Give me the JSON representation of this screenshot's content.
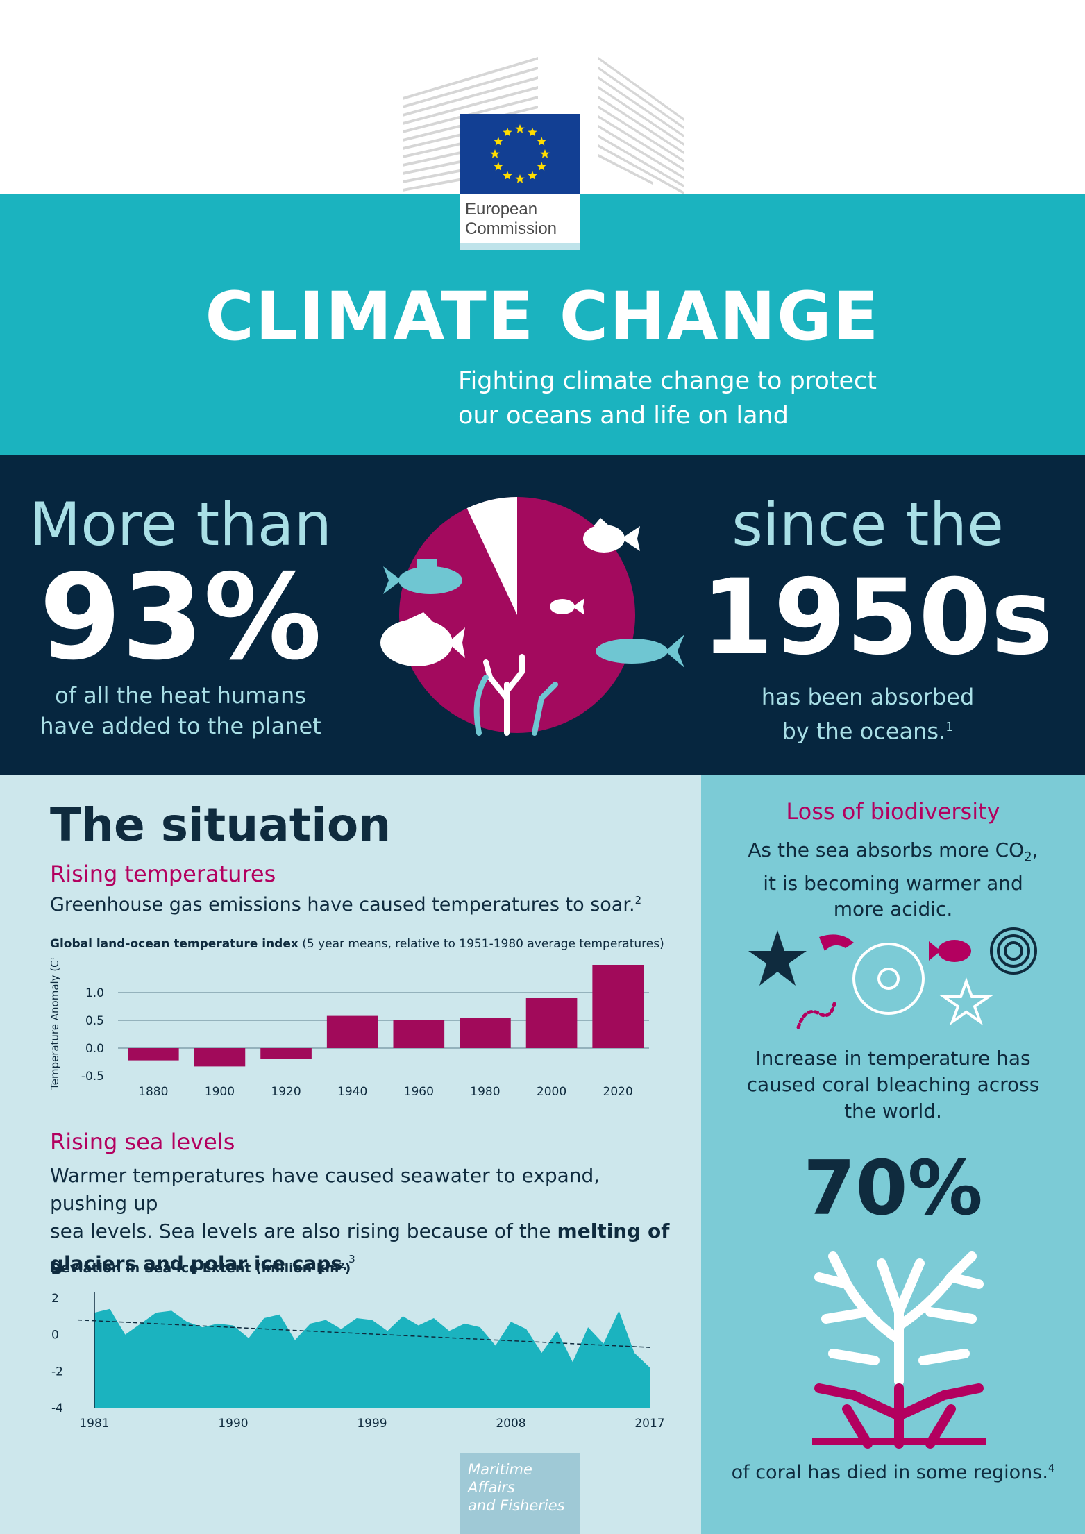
{
  "logo": {
    "line1": "European",
    "line2": "Commission"
  },
  "header": {
    "title": "CLIMATE CHANGE",
    "subtitle_line1": "Fighting climate change to protect",
    "subtitle_line2": "our oceans and life on land"
  },
  "heat": {
    "lead": "More than",
    "percent": "93%",
    "desc_line1": "of all the heat humans",
    "desc_line2": "have added to the planet",
    "since": "since the",
    "decade": "1950s",
    "absorbed_line1": "has been absorbed",
    "absorbed_line2": "by the oceans.",
    "absorbed_note": "1",
    "pie_share": 0.93
  },
  "situation": {
    "heading": "The situation",
    "temp_heading": "Rising temperatures",
    "temp_text": "Greenhouse gas emissions have caused temperatures to soar.",
    "temp_note": "2",
    "sea_heading": "Rising sea levels",
    "sea_text_1": "Warmer temperatures have caused seawater to expand, pushing up",
    "sea_text_2": "sea levels. Sea levels are also rising because of the ",
    "sea_text_bold_1": "melting of",
    "sea_text_bold_2": "glaciers and polar ice caps",
    "sea_text_end": ".",
    "sea_note": "3"
  },
  "chart_data": [
    {
      "type": "bar",
      "title": "Global land-ocean temperature index",
      "subtitle": "(5 year means, relative to 1951-1980 average temperatures)",
      "ylabel": "Temperature Anomaly (C°)",
      "xlabel": "",
      "categories": [
        "1880",
        "1900",
        "1920",
        "1940",
        "1960",
        "1980",
        "2000",
        "2020"
      ],
      "values": [
        -0.22,
        -0.33,
        -0.2,
        0.58,
        0.5,
        0.55,
        0.9,
        1.5
      ],
      "yticks": [
        "1.0",
        "0.5",
        "0.0",
        "-0.5"
      ],
      "ylim": [
        -0.5,
        1.5
      ],
      "grid": true,
      "color": "#a10a5a"
    },
    {
      "type": "area",
      "title": "Deviation in Sea Ice Extent (million km²)",
      "xlabel": "",
      "ylabel": "",
      "xticks": [
        "1981",
        "1990",
        "1999",
        "2008",
        "2017"
      ],
      "yticks": [
        "2",
        "0",
        "-2",
        "-4"
      ],
      "ylim": [
        -4,
        2
      ],
      "xlim": [
        1981,
        2017
      ],
      "x": [
        1981,
        1982,
        1983,
        1984,
        1985,
        1986,
        1987,
        1988,
        1989,
        1990,
        1991,
        1992,
        1993,
        1994,
        1995,
        1996,
        1997,
        1998,
        1999,
        2000,
        2001,
        2002,
        2003,
        2004,
        2005,
        2006,
        2007,
        2008,
        2009,
        2010,
        2011,
        2012,
        2013,
        2014,
        2015,
        2016,
        2017
      ],
      "values": [
        1.2,
        1.4,
        0.0,
        0.6,
        1.2,
        1.3,
        0.7,
        0.4,
        0.6,
        0.5,
        -0.2,
        0.9,
        1.1,
        -0.3,
        0.6,
        0.8,
        0.3,
        0.9,
        0.8,
        0.2,
        1.0,
        0.5,
        0.9,
        0.2,
        0.6,
        0.4,
        -0.6,
        0.7,
        0.3,
        -1.0,
        0.2,
        -1.5,
        0.4,
        -0.5,
        1.3,
        -1.0,
        -1.8
      ],
      "trend": [
        0.8,
        -0.7
      ],
      "color": "#1bb3bf"
    }
  ],
  "biodiversity": {
    "heading": "Loss of biodiversity",
    "text_line1_a": "As the sea absorbs more CO",
    "text_line1_sub": "2",
    "text_line1_b": ",",
    "text_line2": "it is becoming warmer and",
    "text_line3": "more acidic.",
    "coral_line1": "Increase in temperature has",
    "coral_line2": "caused coral bleaching across",
    "coral_line3": "the world.",
    "coral_percent": "70%",
    "coral_died": "of coral has died in some regions.",
    "coral_note": "4"
  },
  "footer": {
    "line1": "Maritime Affairs",
    "line2": "and Fisheries"
  },
  "colors": {
    "teal": "#1bb3bf",
    "navy": "#06263f",
    "magenta": "#a10a5a",
    "light_blue": "#a9dfe6"
  }
}
